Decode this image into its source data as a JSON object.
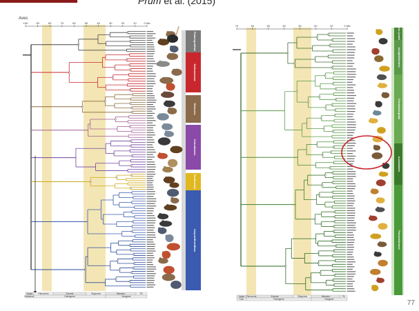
{
  "header": {
    "citation_author": "Prum",
    "citation_rest": " et al. (2015)"
  },
  "page_number": "77",
  "left_panel": {
    "title": "Aves",
    "axis_ticks": [
      "100",
      "90",
      "80",
      "70",
      "60",
      "50",
      "40",
      "30",
      "20",
      "10",
      "0 Ma"
    ],
    "groups": [
      {
        "label": "Palaeognathae",
        "color": "#7a7a7a"
      },
      {
        "label": "Galloanserae",
        "color": "#c8282d"
      },
      {
        "label": "Strisores",
        "color": "#8a6a4a"
      },
      {
        "label": "Columbaves",
        "color": "#8a4aa8"
      },
      {
        "label": "Gruiformes",
        "color": "#e0b820"
      },
      {
        "label": "Aequorlitornithes",
        "color": "#3b5bb0"
      }
    ],
    "epochs": [
      "Upper",
      "Paleocene",
      "Eocene",
      "Oligocene",
      "Miocene",
      "Pli."
    ],
    "periods": [
      "Cretaceous",
      "Paleogene",
      "Neogene"
    ]
  },
  "right_panel": {
    "axis_ticks": [
      "70",
      "60",
      "50",
      "40",
      "30",
      "20",
      "10",
      "0 Ma"
    ],
    "groups": [
      {
        "label": "Neoaves (continued)",
        "color": "#4a8a3a"
      },
      {
        "label": "Accipitriformes",
        "color": "#5a9a4a"
      },
      {
        "label": "Coraciimorphae",
        "color": "#6aaa52"
      },
      {
        "label": "Australaves",
        "color": "#3a7a2a"
      },
      {
        "label": "Passeriformes",
        "color": "#4a9a3a"
      }
    ],
    "epochs": [
      "Paleocene",
      "Eocene",
      "Oligocene",
      "Miocene",
      "Pli."
    ],
    "periods": [
      "Paleogene",
      "Neogene"
    ]
  },
  "colors": {
    "accent": "#8a1a1a",
    "band": "#f3e6b4",
    "highlight_circle": "#c8202a"
  }
}
